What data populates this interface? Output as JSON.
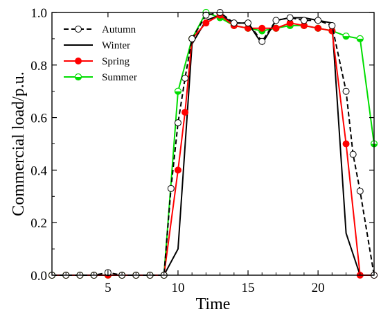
{
  "chart_data": {
    "type": "line",
    "title": "",
    "xlabel": "Time",
    "ylabel": "Commercial load/p.u.",
    "xlim": [
      1,
      24
    ],
    "ylim": [
      0,
      1.0
    ],
    "xticks": [
      5,
      10,
      15,
      20
    ],
    "yticks": [
      0.0,
      0.2,
      0.4,
      0.6,
      0.8,
      1.0
    ],
    "xtick_labels": [
      "5",
      "10",
      "15",
      "20"
    ],
    "ytick_labels": [
      "0.0",
      "0.2",
      "0.4",
      "0.6",
      "0.8",
      "1.0"
    ],
    "grid": false,
    "legend_position": "top-right",
    "series": [
      {
        "name": "Autumn",
        "color": "#000000",
        "line": "dashed",
        "marker": "open-circle",
        "x": [
          1,
          2,
          3,
          4,
          5,
          6,
          7,
          8,
          9,
          9.5,
          10,
          10.5,
          11,
          12,
          13,
          14,
          15,
          16,
          17,
          18,
          19,
          20,
          21,
          22,
          22.5,
          23,
          24
        ],
        "y": [
          0,
          0,
          0,
          0,
          0.01,
          0,
          0,
          0,
          0,
          0.33,
          0.58,
          0.75,
          0.9,
          0.99,
          1.0,
          0.96,
          0.96,
          0.89,
          0.97,
          0.98,
          0.97,
          0.97,
          0.95,
          0.7,
          0.46,
          0.32,
          0
        ]
      },
      {
        "name": "Winter",
        "color": "#000000",
        "line": "solid",
        "marker": "none",
        "x": [
          1,
          2,
          3,
          4,
          5,
          6,
          7,
          8,
          9,
          10,
          11,
          12,
          13,
          14,
          15,
          16,
          17,
          18,
          19,
          20,
          21,
          22,
          23,
          24
        ],
        "y": [
          0,
          0,
          0,
          0,
          0,
          0,
          0,
          0,
          0,
          0.1,
          0.88,
          0.97,
          0.99,
          0.96,
          0.96,
          0.88,
          0.97,
          0.98,
          0.98,
          0.97,
          0.96,
          0.16,
          0,
          0
        ]
      },
      {
        "name": "Spring",
        "color": "#ff0000",
        "line": "solid",
        "marker": "filled-circle",
        "x": [
          1,
          2,
          3,
          4,
          5,
          6,
          7,
          8,
          9,
          10,
          10.5,
          11,
          12,
          13,
          14,
          15,
          16,
          17,
          18,
          19,
          20,
          21,
          22,
          23,
          24
        ],
        "y": [
          0,
          0,
          0,
          0,
          0,
          0,
          0,
          0,
          0,
          0.4,
          0.62,
          0.9,
          0.96,
          0.99,
          0.95,
          0.94,
          0.94,
          0.94,
          0.96,
          0.95,
          0.94,
          0.93,
          0.5,
          0,
          0
        ]
      },
      {
        "name": "Summer",
        "color": "#00dd00",
        "line": "solid",
        "marker": "half-circle",
        "x": [
          1,
          2,
          3,
          4,
          5,
          6,
          7,
          8,
          9,
          10,
          11,
          12,
          13,
          14,
          15,
          16,
          17,
          18,
          19,
          20,
          21,
          22,
          23,
          24
        ],
        "y": [
          0,
          0,
          0,
          0,
          0,
          0,
          0,
          0,
          0,
          0.7,
          0.9,
          1.0,
          0.98,
          0.95,
          0.94,
          0.93,
          0.94,
          0.95,
          0.95,
          0.94,
          0.93,
          0.91,
          0.9,
          0.5
        ]
      }
    ]
  }
}
